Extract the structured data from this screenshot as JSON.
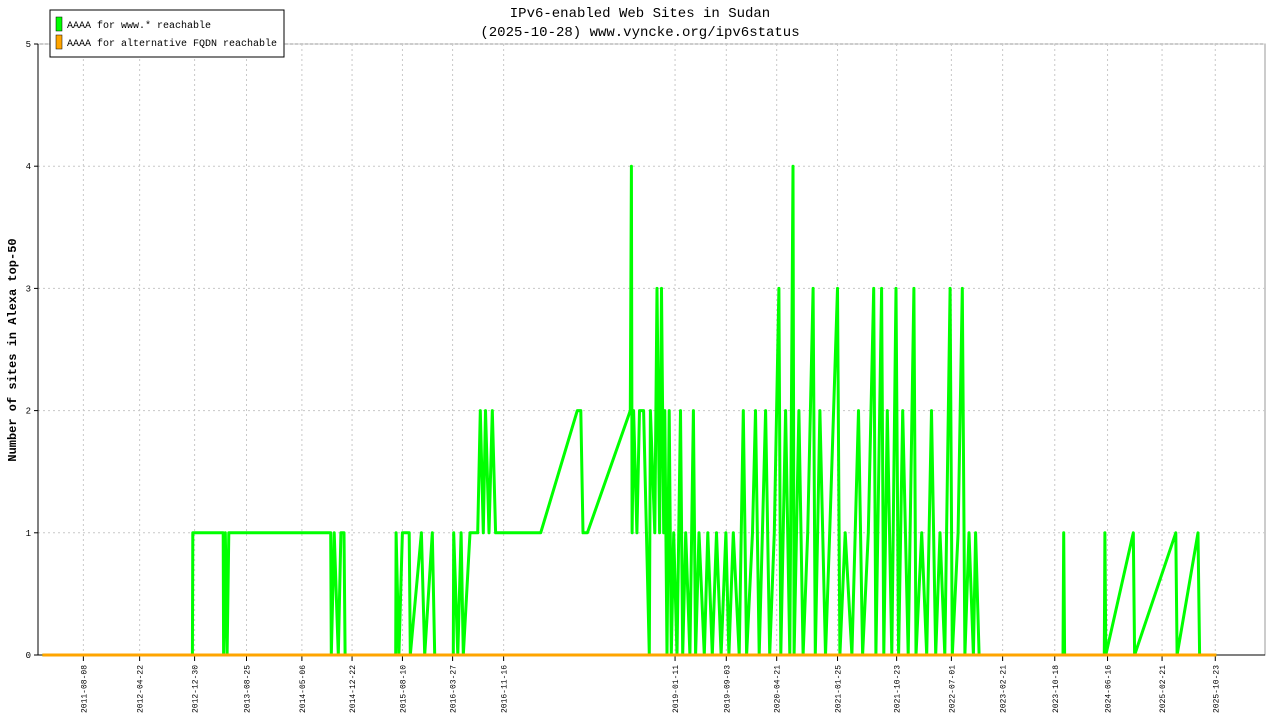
{
  "chart_data": {
    "type": "line",
    "title": "IPv6-enabled Web Sites in Sudan",
    "subtitle": "(2025-10-28) www.vyncke.org/ipv6status",
    "y_label": "Number of sites in Alexa top-50",
    "xlim": [
      "2011-01-12",
      "2026-06-08"
    ],
    "ylim": [
      0,
      5
    ],
    "yticks": [
      0,
      1,
      2,
      3,
      4,
      5
    ],
    "xticks": [
      "2011-08-08",
      "2012-04-22",
      "2012-12-30",
      "2013-08-25",
      "2014-05-06",
      "2014-12-22",
      "2015-08-10",
      "2016-03-27",
      "2016-11-16",
      "2019-01-11",
      "2019-09-03",
      "2020-04-21",
      "2021-01-25",
      "2021-10-23",
      "2022-07-01",
      "2023-02-21",
      "2023-10-18",
      "2024-06-16",
      "2025-02-21",
      "2025-10-23"
    ],
    "grid": true,
    "legend": "upper left",
    "series": [
      {
        "name": "AAAA for www.* reachable",
        "color": "#00ff00",
        "x": [
          "2011-02-01",
          "2012-12-20",
          "2012-12-22",
          "2013-05-10",
          "2013-05-12",
          "2013-05-20",
          "2013-05-28",
          "2013-06-05",
          "2014-09-15",
          "2014-09-18",
          "2014-10-01",
          "2014-10-20",
          "2014-11-01",
          "2014-11-15",
          "2014-11-20",
          "2015-07-10",
          "2015-07-12",
          "2015-07-25",
          "2015-08-10",
          "2015-09-10",
          "2015-09-15",
          "2015-11-05",
          "2015-11-20",
          "2015-12-25",
          "2016-01-05",
          "2016-03-30",
          "2016-04-01",
          "2016-04-20",
          "2016-05-05",
          "2016-05-15",
          "2016-06-15",
          "2016-07-20",
          "2016-08-01",
          "2016-08-15",
          "2016-08-25",
          "2016-09-10",
          "2016-09-25",
          "2016-10-10",
          "2017-05-05",
          "2017-10-20",
          "2017-11-05",
          "2017-11-15",
          "2017-12-05",
          "2018-06-20",
          "2018-06-25",
          "2018-06-28",
          "2018-07-05",
          "2018-07-20",
          "2018-08-01",
          "2018-08-20",
          "2018-09-15",
          "2018-09-20",
          "2018-10-10",
          "2018-10-20",
          "2018-11-01",
          "2018-11-10",
          "2018-11-20",
          "2018-11-25",
          "2018-12-05",
          "2018-12-15",
          "2018-12-25",
          "2019-01-05",
          "2019-01-20",
          "2019-02-05",
          "2019-02-15",
          "2019-03-01",
          "2019-03-20",
          "2019-04-05",
          "2019-04-15",
          "2019-05-01",
          "2019-05-25",
          "2019-06-10",
          "2019-07-01",
          "2019-07-20",
          "2019-08-10",
          "2019-09-01",
          "2019-09-15",
          "2019-10-05",
          "2019-11-01",
          "2019-11-20",
          "2019-12-05",
          "2020-01-01",
          "2020-01-15",
          "2020-02-01",
          "2020-03-01",
          "2020-03-20",
          "2020-04-10",
          "2020-05-01",
          "2020-05-10",
          "2020-06-01",
          "2020-06-20",
          "2020-07-05",
          "2020-07-10",
          "2020-08-01",
          "2020-08-20",
          "2020-09-10",
          "2020-10-05",
          "2020-10-15",
          "2020-11-05",
          "2020-12-01",
          "2020-12-20",
          "2021-01-25",
          "2021-02-05",
          "2021-03-01",
          "2021-04-01",
          "2021-05-01",
          "2021-05-20",
          "2021-06-15",
          "2021-07-10",
          "2021-07-20",
          "2021-08-15",
          "2021-08-25",
          "2021-09-10",
          "2021-10-01",
          "2021-10-20",
          "2021-11-01",
          "2021-11-20",
          "2021-12-15",
          "2022-01-10",
          "2022-01-20",
          "2022-02-15",
          "2022-03-10",
          "2022-04-01",
          "2022-04-20",
          "2022-05-10",
          "2022-06-01",
          "2022-06-25",
          "2022-07-05",
          "2022-08-01",
          "2022-08-20",
          "2022-09-01",
          "2022-09-20",
          "2022-10-10",
          "2022-10-20",
          "2022-11-05",
          "2023-11-25",
          "2023-11-28",
          "2023-12-02",
          "2024-06-01",
          "2024-06-04",
          "2024-06-08",
          "2024-10-12",
          "2024-10-18",
          "2025-04-25",
          "2025-05-01",
          "2025-08-05",
          "2025-08-12",
          "2025-10-28"
        ],
        "values": [
          0,
          0,
          1,
          1,
          0,
          1,
          0,
          1,
          1,
          0,
          1,
          0,
          1,
          1,
          0,
          0,
          1,
          0,
          1,
          1,
          0,
          1,
          0,
          1,
          0,
          0,
          1,
          0,
          1,
          0,
          1,
          1,
          2,
          1,
          2,
          1,
          2,
          1,
          1,
          2,
          2,
          1,
          1,
          2,
          4,
          1,
          2,
          1,
          2,
          2,
          0,
          2,
          1,
          3,
          1,
          3,
          1,
          2,
          0,
          2,
          0,
          1,
          0,
          2,
          0,
          1,
          0,
          2,
          0,
          1,
          0,
          1,
          0,
          1,
          0,
          1,
          0,
          1,
          0,
          2,
          0,
          1,
          2,
          0,
          2,
          0,
          1,
          3,
          0,
          2,
          0,
          4,
          0,
          2,
          0,
          1,
          3,
          0,
          2,
          0,
          1,
          3,
          0,
          1,
          0,
          2,
          0,
          1,
          3,
          0,
          3,
          0,
          2,
          0,
          3,
          0,
          2,
          0,
          3,
          0,
          1,
          0,
          2,
          0,
          1,
          0,
          3,
          0,
          1,
          3,
          0,
          1,
          0,
          1,
          0,
          0,
          1,
          0,
          0,
          1,
          0,
          1,
          0,
          1,
          0,
          1,
          0,
          0
        ]
      },
      {
        "name": "AAAA for alternative FQDN reachable",
        "color": "#ffa500",
        "x": [
          "2011-02-01",
          "2025-10-28"
        ],
        "values": [
          0,
          0
        ]
      }
    ]
  }
}
